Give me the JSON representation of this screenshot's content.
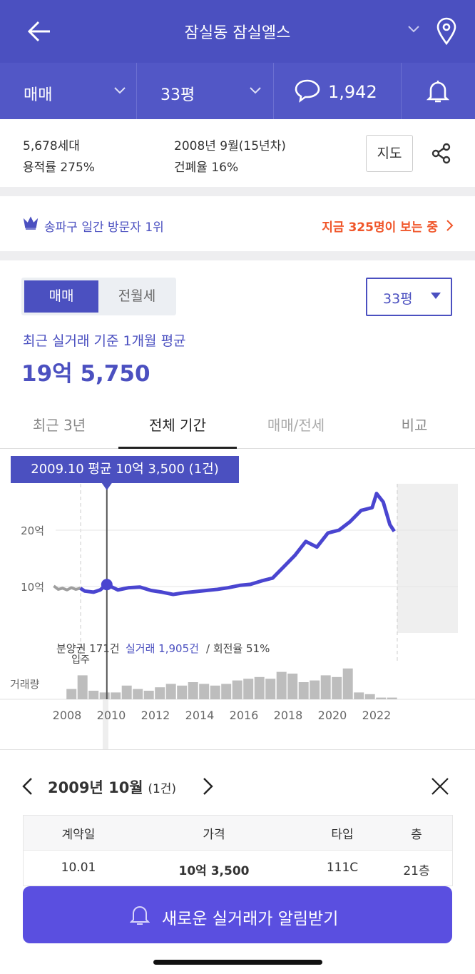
{
  "header": {
    "title": "잠실동 잠실엘스"
  },
  "filters": [
    "매매",
    "33평"
  ],
  "comments": "1,942",
  "info": {
    "households": "5,678세대",
    "far": "용적률 275%",
    "built": "2008년 9월(15년차)",
    "bcr": "건폐율 16%",
    "map_button": "지도"
  },
  "visitor": {
    "rank": "송파구 일간 방문자 1위",
    "now": "지금 325명이 보는 중"
  },
  "toggle": [
    "매매",
    "전월세"
  ],
  "size_select": "33평",
  "average": {
    "label": "최근 실거래 기준 1개월 평균",
    "value": "19억 5,750"
  },
  "tabs": [
    "최근 3년",
    "전체 기간",
    "매매/전세",
    "비교"
  ],
  "chart": {
    "type": "line",
    "tooltip": "2009.10 평균 10억 3,500 (1건)",
    "yticks": [
      {
        "value": 10,
        "label": "10억"
      },
      {
        "value": 20,
        "label": "20억"
      }
    ],
    "xticks": [
      2008,
      2010,
      2012,
      2014,
      2016,
      2018,
      2020,
      2022
    ],
    "series": [
      {
        "color": "#9e9e9e",
        "x": [
          2007.4,
          2007.6,
          2007.8,
          2008.0,
          2008.2,
          2008.4,
          2008.6
        ],
        "values": [
          10.1,
          9.5,
          9.7,
          9.4,
          9.8,
          9.5,
          9.7
        ]
      },
      {
        "color": "#4a45d0",
        "x": [
          2008.6,
          2008.8,
          2009.2,
          2009.5,
          2009.8,
          2010.3,
          2010.8,
          2011.3,
          2011.8,
          2012.3,
          2012.8,
          2013.3,
          2013.8,
          2014.3,
          2014.8,
          2015.3,
          2015.8,
          2016.3,
          2016.8,
          2017.3,
          2017.8,
          2018.3,
          2018.8,
          2019.3,
          2019.8,
          2020.3,
          2020.8,
          2021.3,
          2021.8,
          2022.0,
          2022.3,
          2022.6,
          2022.8
        ],
        "values": [
          9.7,
          9.2,
          9.0,
          9.4,
          10.35,
          9.4,
          9.8,
          9.9,
          9.3,
          9.0,
          8.6,
          8.9,
          9.1,
          9.3,
          9.5,
          9.8,
          10.2,
          10.4,
          11.0,
          11.5,
          13.5,
          15.5,
          18.0,
          17.0,
          19.5,
          20.0,
          21.5,
          23.5,
          24.0,
          26.5,
          25.0,
          21.0,
          19.8
        ]
      }
    ],
    "selected": {
      "x": 2009.8,
      "value": 10.35
    },
    "volume": {
      "color": "#bdbdbd",
      "x": [
        2008.2,
        2008.7,
        2009.2,
        2009.7,
        2010.2,
        2010.7,
        2011.2,
        2011.7,
        2012.2,
        2012.7,
        2013.2,
        2013.7,
        2014.2,
        2014.7,
        2015.2,
        2015.7,
        2016.2,
        2016.7,
        2017.2,
        2017.7,
        2018.2,
        2018.7,
        2019.2,
        2019.7,
        2020.2,
        2020.7,
        2021.2,
        2021.7,
        2022.2,
        2022.7
      ],
      "values": [
        6,
        14,
        5,
        4,
        4,
        8,
        6,
        5,
        7,
        9,
        8,
        10,
        9,
        8,
        9,
        11,
        12,
        13,
        12,
        16,
        15,
        10,
        11,
        14,
        13,
        18,
        4,
        3,
        1,
        1
      ]
    },
    "stats": {
      "presale": "분양권 171건",
      "trades": "실거래 1,905건",
      "turnover": "/ 회전율 51%"
    },
    "move_in": "입주",
    "volume_label": "거래량"
  },
  "detail": {
    "month": "2009년 10월",
    "count": "(1건)",
    "table": {
      "headers": [
        "계약일",
        "가격",
        "타입",
        "층"
      ],
      "rows": [
        [
          "10.01",
          "10억 3,500",
          "111C",
          "21층"
        ]
      ]
    }
  },
  "alert_button": "새로운 실거래가 알림받기"
}
